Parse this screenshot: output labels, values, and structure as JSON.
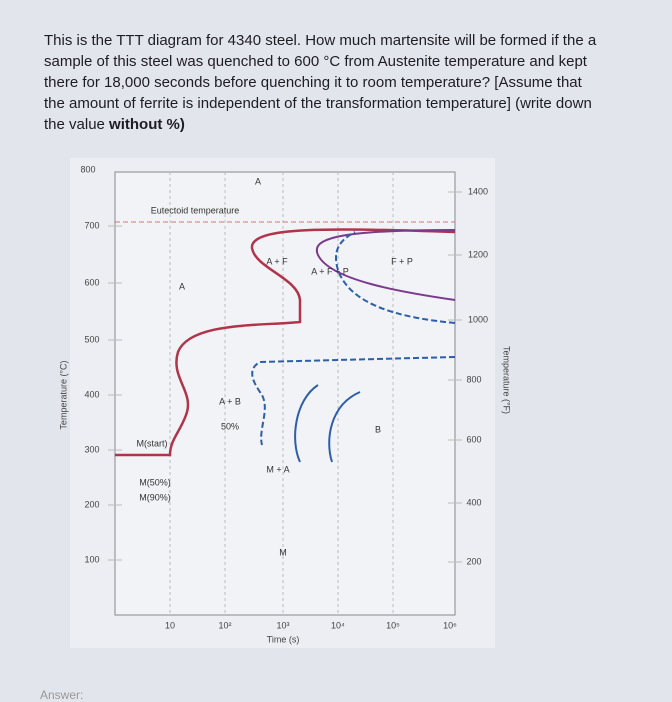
{
  "question": {
    "text": "This is the TTT diagram for 4340 steel. How much martensite will be formed if the a sample of this steel was quenched to 600 °C from Austenite temperature and kept there for 18,000 seconds before quenching it to room temperature? [Assume that the amount of ferrite is independent of the transformation temperature] (write down the value ",
    "emphasis": "without %)"
  },
  "figure": {
    "y_axis_left": {
      "label": "Temperature (°C)",
      "ticks": [
        "800",
        "700",
        "600",
        "500",
        "400",
        "300",
        "200",
        "100"
      ]
    },
    "y_axis_right": {
      "label": "Temperature (°F)",
      "ticks": [
        "1400",
        "1200",
        "1000",
        "800",
        "600",
        "400",
        "200"
      ]
    },
    "x_axis": {
      "label": "Time (s)",
      "ticks": [
        "10",
        "10²",
        "10³",
        "10⁴",
        "10⁵",
        "10⁶"
      ]
    },
    "regions": {
      "eutectoid": "Eutectoid temperature",
      "a_top": "A",
      "a_left": "A",
      "a_f": "A + F",
      "f_p": "F + P",
      "a_f_p": "A + F + P",
      "a_b": "A + B",
      "fifty": "50%",
      "b": "B",
      "m_a": "M + A",
      "m": "M",
      "m_start": "M(start)",
      "m_50": "M(50%)",
      "m_90": "M(90%)"
    }
  },
  "answer": "Answer:"
}
